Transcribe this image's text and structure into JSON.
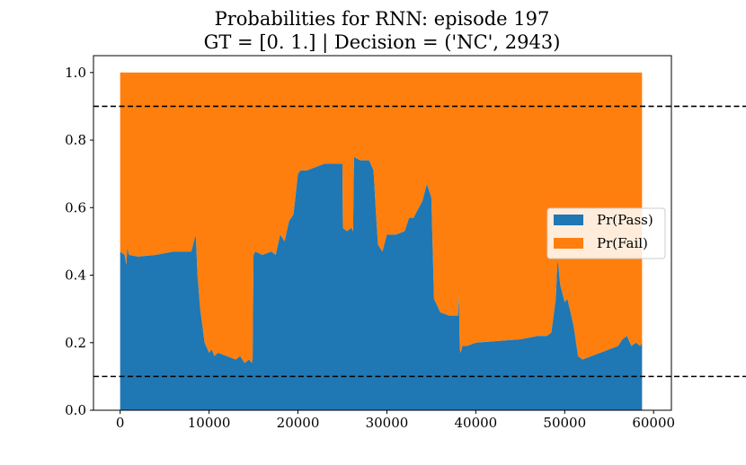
{
  "chart_data": {
    "type": "area",
    "stacked": true,
    "title": "Probabilities for RNN: episode 197",
    "subtitle": "GT = [0. 1.] | Decision = ('NC', 2943)",
    "xlabel": "",
    "ylabel": "",
    "xlim": [
      -3000,
      62000
    ],
    "ylim": [
      0.0,
      1.05
    ],
    "xticks": [
      0,
      10000,
      20000,
      30000,
      40000,
      50000,
      60000
    ],
    "xtick_labels": [
      "0",
      "10000",
      "20000",
      "30000",
      "40000",
      "50000",
      "60000"
    ],
    "yticks": [
      0.0,
      0.2,
      0.4,
      0.6,
      0.8,
      1.0
    ],
    "ytick_labels": [
      "0.0",
      "0.2",
      "0.4",
      "0.6",
      "0.8",
      "1.0"
    ],
    "grid": false,
    "legend_position": "center-right",
    "thresholds": [
      0.9,
      0.1
    ],
    "threshold_style": "dashed",
    "x": [
      0,
      500,
      700,
      800,
      1000,
      2000,
      4000,
      6000,
      8000,
      8500,
      8700,
      9000,
      9500,
      10000,
      10300,
      10600,
      11000,
      12000,
      13000,
      13500,
      14000,
      14500,
      14800,
      14900,
      15000,
      15200,
      16000,
      17000,
      17500,
      18000,
      18500,
      19000,
      19500,
      20000,
      20300,
      21000,
      22000,
      23000,
      24000,
      25000,
      25050,
      25500,
      26000,
      26200,
      26300,
      27000,
      28000,
      28500,
      28800,
      29000,
      29500,
      30000,
      31000,
      32000,
      32500,
      33000,
      34000,
      34500,
      35000,
      35300,
      36000,
      37000,
      38000,
      38100,
      38200,
      38300,
      38500,
      39000,
      40000,
      45000,
      47000,
      48000,
      48500,
      49000,
      49200,
      49500,
      50000,
      50300,
      51000,
      51500,
      52000,
      53000,
      54000,
      55000,
      56000,
      56500,
      57000,
      57500,
      58000,
      58500,
      58700
    ],
    "series": [
      {
        "name": "Pr(Pass)",
        "color": "#1f77b4",
        "values": [
          0.47,
          0.46,
          0.43,
          0.48,
          0.46,
          0.455,
          0.46,
          0.47,
          0.47,
          0.52,
          0.4,
          0.3,
          0.2,
          0.17,
          0.18,
          0.16,
          0.17,
          0.16,
          0.15,
          0.16,
          0.14,
          0.15,
          0.14,
          0.15,
          0.46,
          0.47,
          0.46,
          0.47,
          0.46,
          0.52,
          0.5,
          0.56,
          0.58,
          0.7,
          0.71,
          0.71,
          0.72,
          0.73,
          0.73,
          0.73,
          0.54,
          0.53,
          0.54,
          0.53,
          0.75,
          0.74,
          0.74,
          0.71,
          0.57,
          0.49,
          0.47,
          0.52,
          0.52,
          0.53,
          0.57,
          0.57,
          0.62,
          0.67,
          0.63,
          0.33,
          0.29,
          0.28,
          0.28,
          0.34,
          0.18,
          0.17,
          0.19,
          0.19,
          0.2,
          0.21,
          0.22,
          0.22,
          0.23,
          0.33,
          0.45,
          0.37,
          0.32,
          0.33,
          0.25,
          0.16,
          0.15,
          0.16,
          0.17,
          0.18,
          0.19,
          0.21,
          0.22,
          0.19,
          0.2,
          0.19,
          0.2
        ]
      },
      {
        "name": "Pr(Fail)",
        "color": "#ff7f0e",
        "values": "1 - Pr(Pass)"
      }
    ]
  }
}
